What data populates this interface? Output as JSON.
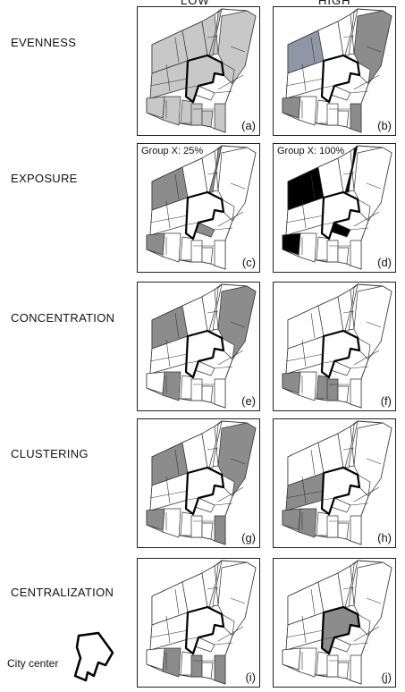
{
  "columns": {
    "low": "LOW",
    "high": "HIGH"
  },
  "rows": [
    {
      "label": "EVENNESS"
    },
    {
      "label": "EXPOSURE"
    },
    {
      "label": "CONCENTRATION"
    },
    {
      "label": "CLUSTERING"
    },
    {
      "label": "CENTRALIZATION"
    }
  ],
  "panels": [
    {
      "label": "(a)",
      "group": ""
    },
    {
      "label": "(b)",
      "group": ""
    },
    {
      "label": "(c)",
      "group": "Group X: 25%"
    },
    {
      "label": "(d)",
      "group": "Group X: 100%"
    },
    {
      "label": "(e)",
      "group": ""
    },
    {
      "label": "(f)",
      "group": ""
    },
    {
      "label": "(g)",
      "group": ""
    },
    {
      "label": "(h)",
      "group": ""
    },
    {
      "label": "(i)",
      "group": ""
    },
    {
      "label": "(j)",
      "group": ""
    }
  ],
  "legend": {
    "label": "City center"
  },
  "colors": {
    "fill_light": "#c8c8c8",
    "fill_mid": "#8c8c8c",
    "fill_dark": "#000000",
    "line": "#333333",
    "blue_gray": "#8f97a6"
  }
}
